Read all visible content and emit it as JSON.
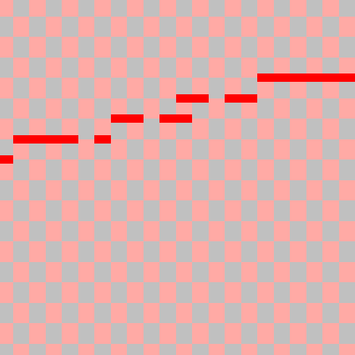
{
  "board": {
    "rows": 18,
    "cols": 22,
    "colors": {
      "tile_light": "#ffaaa5",
      "tile_gray": "#c0c0c0",
      "trail": "#ff0000"
    }
  },
  "trail": {
    "color_name": "red",
    "segments": [
      {
        "row": 8,
        "col": 0,
        "length": 1
      },
      {
        "row": 7,
        "col": 1,
        "length": 2
      },
      {
        "row": 7,
        "col": 2,
        "length": 1
      },
      {
        "row": 7,
        "col": 3,
        "length": 2
      },
      {
        "row": 7,
        "col": 4,
        "length": 1
      },
      {
        "row": 7,
        "col": 6,
        "length": 1
      },
      {
        "row": 6,
        "col": 7,
        "length": 2
      },
      {
        "row": 6,
        "col": 8,
        "length": 1
      },
      {
        "row": 6,
        "col": 10,
        "length": 2
      },
      {
        "row": 5,
        "col": 11,
        "length": 1
      },
      {
        "row": 5,
        "col": 12,
        "length": 1
      },
      {
        "row": 5,
        "col": 14,
        "length": 2
      },
      {
        "row": 4,
        "col": 16,
        "length": 2
      },
      {
        "row": 4,
        "col": 18,
        "length": 2
      },
      {
        "row": 4,
        "col": 19,
        "length": 2
      },
      {
        "row": 4,
        "col": 21,
        "length": 1
      }
    ]
  }
}
